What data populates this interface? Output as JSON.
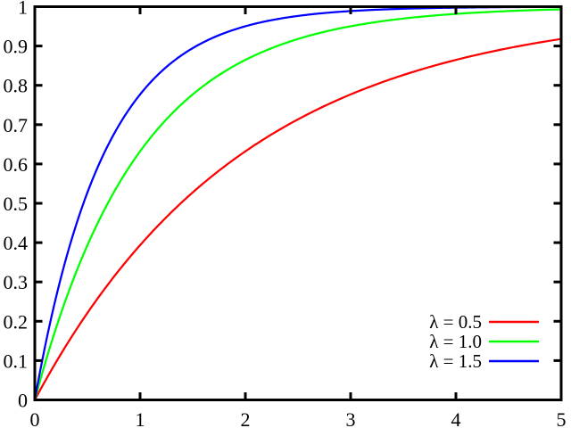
{
  "chart_data": {
    "type": "line",
    "title": "",
    "xlabel": "",
    "ylabel": "",
    "x_range": [
      0,
      5
    ],
    "y_range": [
      0,
      1
    ],
    "x_ticks": [
      0,
      1,
      2,
      3,
      4,
      5
    ],
    "y_ticks": [
      0,
      0.1,
      0.2,
      0.3,
      0.4,
      0.5,
      0.6,
      0.7,
      0.8,
      0.9,
      1
    ],
    "grid": false,
    "tick_style": "inward, mirrored on top and right borders",
    "axis_color": "#000000",
    "background_color": "#ffffff",
    "legend_position": "inside-bottom-right",
    "series": [
      {
        "name": "λ = 0.5",
        "lambda": 0.5,
        "color": "#ff0000",
        "formula": "F(x) = 1 - exp(-0.5x)",
        "x": [
          0,
          0.5,
          1,
          1.5,
          2,
          2.5,
          3,
          3.5,
          4,
          4.5,
          5
        ],
        "y": [
          0,
          0.2212,
          0.3935,
          0.5276,
          0.6321,
          0.7135,
          0.7769,
          0.8262,
          0.8647,
          0.8946,
          0.9179
        ]
      },
      {
        "name": "λ = 1.0",
        "lambda": 1.0,
        "color": "#00ff00",
        "formula": "F(x) = 1 - exp(-1.0x)",
        "x": [
          0,
          0.5,
          1,
          1.5,
          2,
          2.5,
          3,
          3.5,
          4,
          4.5,
          5
        ],
        "y": [
          0,
          0.3935,
          0.6321,
          0.7769,
          0.8647,
          0.9179,
          0.9502,
          0.9698,
          0.9817,
          0.9889,
          0.9933
        ]
      },
      {
        "name": "λ = 1.5",
        "lambda": 1.5,
        "color": "#0000ff",
        "formula": "F(x) = 1 - exp(-1.5x)",
        "x": [
          0,
          0.5,
          1,
          1.5,
          2,
          2.5,
          3,
          3.5,
          4,
          4.5,
          5
        ],
        "y": [
          0,
          0.5276,
          0.7769,
          0.8946,
          0.9502,
          0.9765,
          0.9889,
          0.9948,
          0.9975,
          0.9988,
          0.9994
        ]
      }
    ]
  }
}
